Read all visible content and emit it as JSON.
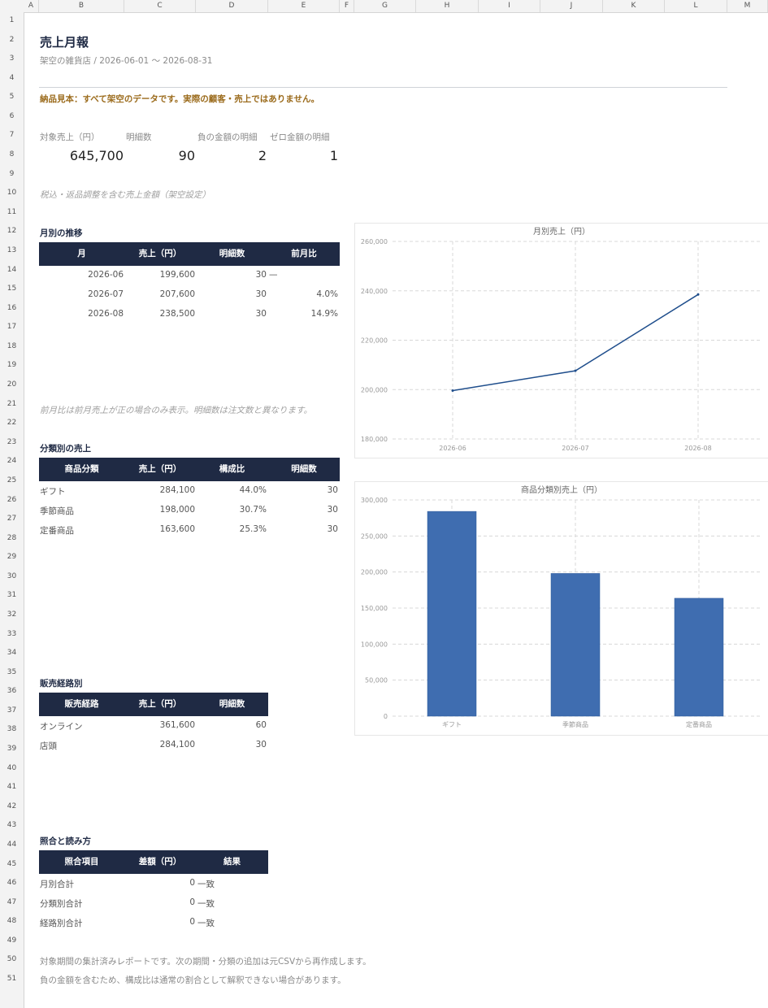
{
  "columns": [
    "A",
    "B",
    "C",
    "D",
    "E",
    "F",
    "G",
    "H",
    "I",
    "J",
    "K",
    "L",
    "M"
  ],
  "rows": [
    "1",
    "2",
    "3",
    "4",
    "5",
    "6",
    "7",
    "8",
    "9",
    "10",
    "11",
    "12",
    "13",
    "14",
    "15",
    "16",
    "17",
    "18",
    "19",
    "20",
    "21",
    "22",
    "23",
    "24",
    "25",
    "26",
    "27",
    "28",
    "29",
    "30",
    "31",
    "32",
    "33",
    "34",
    "35",
    "36",
    "37",
    "38",
    "39",
    "40",
    "41",
    "42",
    "43",
    "44",
    "45",
    "46",
    "47",
    "48",
    "49",
    "50",
    "51"
  ],
  "report": {
    "title": "売上月報",
    "subtitle": "架空の雑貨店 / 2026-06-01 〜 2026-08-31",
    "notice": "納品見本：すべて架空のデータです。実際の顧客・売上ではありません。"
  },
  "kpis": [
    {
      "label": "対象売上（円）",
      "value": "645,700"
    },
    {
      "label": "明細数",
      "value": "90"
    },
    {
      "label": "負の金額の明細",
      "value": "2"
    },
    {
      "label": "ゼロ金額の明細",
      "value": "1"
    }
  ],
  "kpi_note": "税込・返品調整を含む売上金額（架空設定）",
  "monthly": {
    "title": "月別の推移",
    "headers": [
      "月",
      "売上（円）",
      "明細数",
      "前月比"
    ],
    "rows": [
      [
        "2026-06",
        "199,600",
        "30",
        "—"
      ],
      [
        "2026-07",
        "207,600",
        "30",
        "4.0%"
      ],
      [
        "2026-08",
        "238,500",
        "30",
        "14.9%"
      ]
    ],
    "note": "前月比は前月売上が正の場合のみ表示。明細数は注文数と異なります。"
  },
  "category": {
    "title": "分類別の売上",
    "headers": [
      "商品分類",
      "売上（円）",
      "構成比",
      "明細数"
    ],
    "rows": [
      [
        "ギフト",
        "284,100",
        "44.0%",
        "30"
      ],
      [
        "季節商品",
        "198,000",
        "30.7%",
        "30"
      ],
      [
        "定番商品",
        "163,600",
        "25.3%",
        "30"
      ]
    ]
  },
  "channel": {
    "title": "販売経路別",
    "headers": [
      "販売経路",
      "売上（円）",
      "明細数"
    ],
    "rows": [
      [
        "オンライン",
        "361,600",
        "60"
      ],
      [
        "店頭",
        "284,100",
        "30"
      ]
    ]
  },
  "reconcile": {
    "title": "照合と読み方",
    "headers": [
      "照合項目",
      "差額（円）",
      "結果"
    ],
    "rows": [
      [
        "月別合計",
        "0",
        "一致"
      ],
      [
        "分類別合計",
        "0",
        "一致"
      ],
      [
        "経路別合計",
        "0",
        "一致"
      ]
    ]
  },
  "footer": [
    "対象期間の集計済みレポートです。次の期間・分類の追加は元CSVから再作成します。",
    "負の金額を含むため、構成比は通常の割合として解釈できない場合があります。"
  ],
  "chart_data": [
    {
      "type": "line",
      "title": "月別売上（円）",
      "categories": [
        "2026-06",
        "2026-07",
        "2026-08"
      ],
      "values": [
        199600,
        207600,
        238500
      ],
      "ylim": [
        180000,
        260000
      ],
      "yticks": [
        "180,000",
        "200,000",
        "220,000",
        "240,000",
        "260,000"
      ],
      "ytick_values": [
        180000,
        200000,
        220000,
        240000,
        260000
      ],
      "grid": true,
      "color": "#1f4e8c"
    },
    {
      "type": "bar",
      "title": "商品分類別売上（円）",
      "categories": [
        "ギフト",
        "季節商品",
        "定番商品"
      ],
      "values": [
        284100,
        198000,
        163600
      ],
      "ylim": [
        0,
        300000
      ],
      "yticks": [
        "0",
        "50,000",
        "100,000",
        "150,000",
        "200,000",
        "250,000",
        "300,000"
      ],
      "ytick_values": [
        0,
        50000,
        100000,
        150000,
        200000,
        250000,
        300000
      ],
      "grid": true,
      "color": "#3f6db0"
    }
  ]
}
